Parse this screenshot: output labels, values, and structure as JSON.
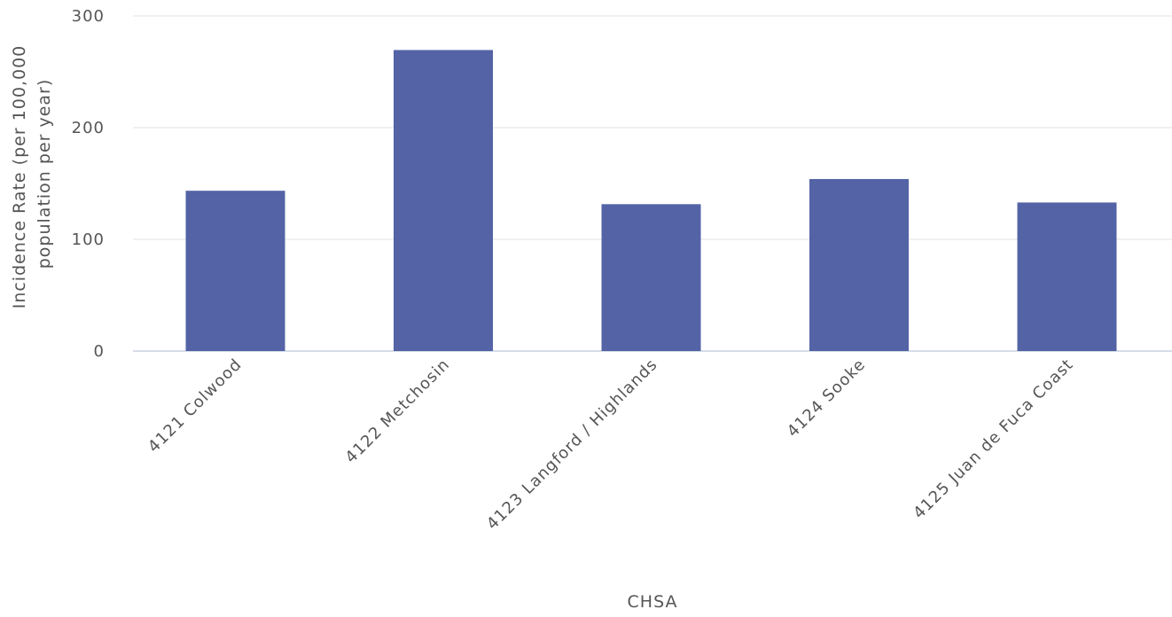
{
  "chart_data": {
    "type": "bar",
    "categories": [
      "4121 Colwood",
      "4122 Metchosin",
      "4123 Langford / Highlands",
      "4124 Sooke",
      "4125 Juan de Fuca Coast"
    ],
    "values": [
      143.5,
      269.5,
      131.5,
      154,
      133
    ],
    "xlabel": "CHSA",
    "ylabel_lines": [
      "Incidence Rate (per 100,000",
      "population per year)"
    ],
    "ylim": [
      0,
      300
    ],
    "yticks": [
      0,
      100,
      200,
      300
    ],
    "ytick_labels": [
      "0",
      "100",
      "200",
      "300"
    ],
    "grid": true,
    "legend": "none",
    "colors": {
      "bar": "#5363a5",
      "grid": "#e3e3e3",
      "baseline": "#c8d2e0",
      "text": "#555555"
    }
  }
}
